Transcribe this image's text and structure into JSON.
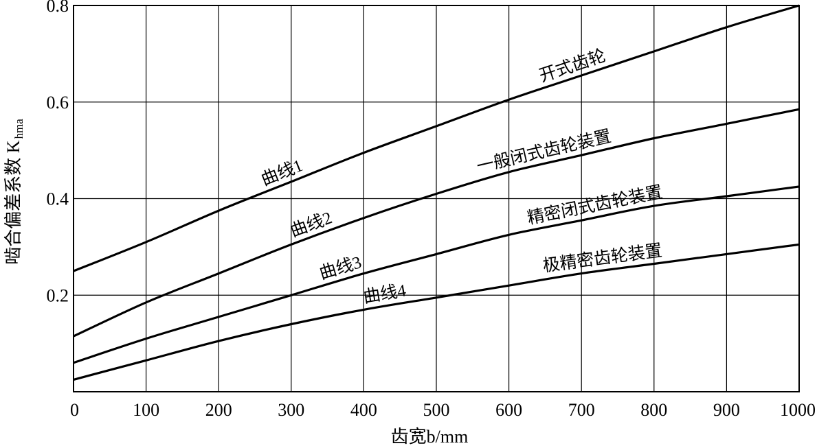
{
  "chart_data": {
    "type": "line",
    "xlabel": "齿宽b/mm",
    "ylabel": "啮合偏差系数 K",
    "ylabel_sub": "hma",
    "xlim": [
      0,
      1000
    ],
    "ylim": [
      0,
      0.8
    ],
    "x_ticks": [
      "0",
      "100",
      "200",
      "300",
      "400",
      "500",
      "600",
      "700",
      "800",
      "900",
      "1000"
    ],
    "y_ticks": [
      "0.2",
      "0.4",
      "0.6",
      "0.8"
    ],
    "grid": true,
    "x": [
      0,
      100,
      200,
      300,
      400,
      500,
      600,
      700,
      800,
      900,
      1000
    ],
    "series": [
      {
        "name": "曲线1",
        "label": "开式齿轮",
        "values": [
          0.25,
          0.31,
          0.375,
          0.435,
          0.495,
          0.55,
          0.605,
          0.655,
          0.705,
          0.755,
          0.8
        ]
      },
      {
        "name": "曲线2",
        "label": "一般闭式齿轮装置",
        "values": [
          0.115,
          0.185,
          0.245,
          0.305,
          0.36,
          0.41,
          0.455,
          0.49,
          0.525,
          0.555,
          0.585
        ]
      },
      {
        "name": "曲线3",
        "label": "精密闭式齿轮装置",
        "values": [
          0.06,
          0.11,
          0.155,
          0.2,
          0.245,
          0.285,
          0.325,
          0.355,
          0.385,
          0.405,
          0.425
        ]
      },
      {
        "name": "曲线4",
        "label": "极精密齿轮装置",
        "values": [
          0.025,
          0.065,
          0.105,
          0.14,
          0.17,
          0.195,
          0.22,
          0.245,
          0.265,
          0.285,
          0.305
        ]
      }
    ]
  }
}
